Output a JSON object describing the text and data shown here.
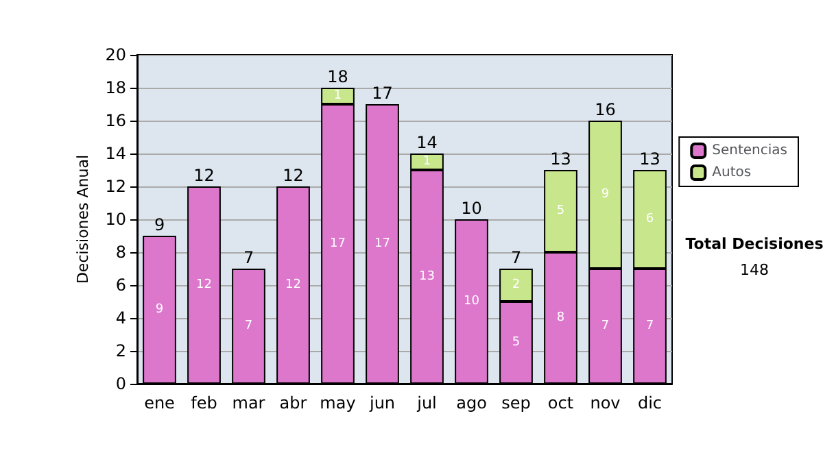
{
  "chart_data": {
    "type": "bar",
    "stacked": true,
    "ylabel": "Decisiones Anual",
    "categories": [
      "ene",
      "feb",
      "mar",
      "abr",
      "may",
      "jun",
      "jul",
      "ago",
      "sep",
      "oct",
      "nov",
      "dic"
    ],
    "series": [
      {
        "name": "Sentencias",
        "color": "#dd77cc",
        "values": [
          9,
          12,
          7,
          12,
          17,
          17,
          13,
          10,
          5,
          8,
          7,
          7
        ]
      },
      {
        "name": "Autos",
        "color": "#c8e68c",
        "values": [
          null,
          null,
          null,
          null,
          1,
          null,
          1,
          null,
          2,
          5,
          9,
          6
        ]
      }
    ],
    "totals": [
      "9",
      "12",
      "7",
      "12",
      "18",
      "17",
      "14",
      "10",
      "7",
      "13",
      "16",
      "13"
    ],
    "data_labels": true,
    "ylim": [
      0,
      20
    ],
    "yticks": [
      0,
      2,
      4,
      6,
      8,
      10,
      12,
      14,
      16,
      18,
      20
    ],
    "grid": "y",
    "legend": "right",
    "annotations": [
      "Total Decisiones",
      "148"
    ]
  }
}
